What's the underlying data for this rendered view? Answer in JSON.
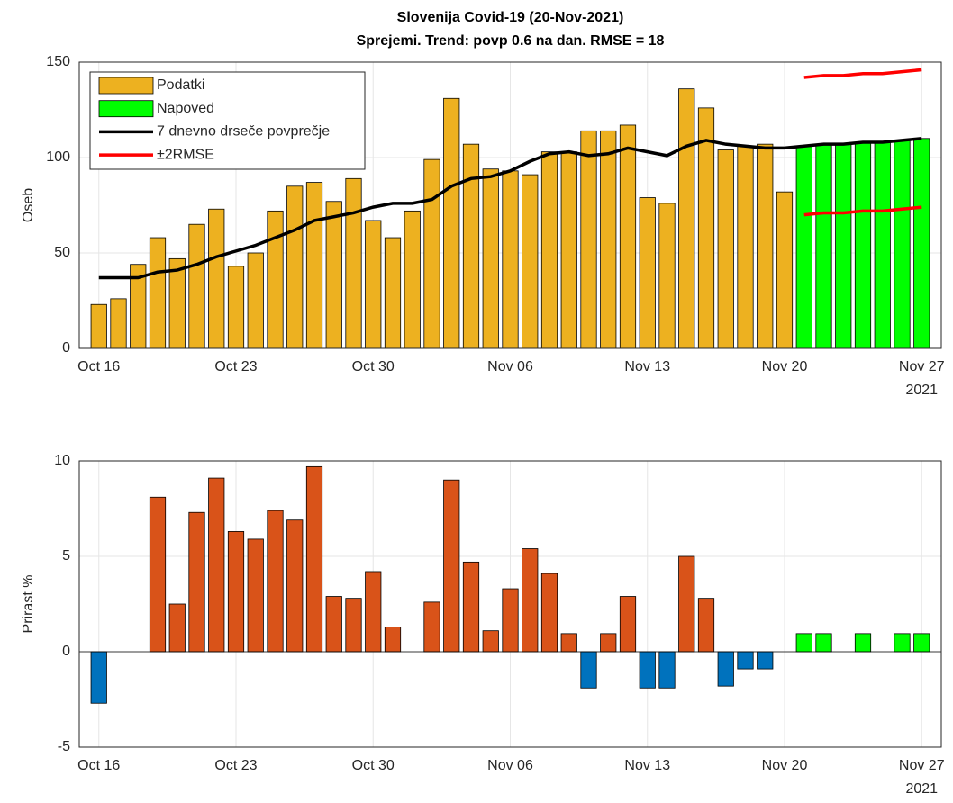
{
  "chart_data": [
    {
      "type": "bar",
      "title": "Slovenija Covid-19 (20-Nov-2021)",
      "subtitle": "Sprejemi. Trend: povp 0.6 na dan. RMSE = 18",
      "ylabel": "Oseb",
      "x": [
        "2021-10-16",
        "2021-10-17",
        "2021-10-18",
        "2021-10-19",
        "2021-10-20",
        "2021-10-21",
        "2021-10-22",
        "2021-10-23",
        "2021-10-24",
        "2021-10-25",
        "2021-10-26",
        "2021-10-27",
        "2021-10-28",
        "2021-10-29",
        "2021-10-30",
        "2021-10-31",
        "2021-11-01",
        "2021-11-02",
        "2021-11-03",
        "2021-11-04",
        "2021-11-05",
        "2021-11-06",
        "2021-11-07",
        "2021-11-08",
        "2021-11-09",
        "2021-11-10",
        "2021-11-11",
        "2021-11-12",
        "2021-11-13",
        "2021-11-14",
        "2021-11-15",
        "2021-11-16",
        "2021-11-17",
        "2021-11-18",
        "2021-11-19",
        "2021-11-20",
        "2021-11-21",
        "2021-11-22",
        "2021-11-23",
        "2021-11-24",
        "2021-11-25",
        "2021-11-26",
        "2021-11-27"
      ],
      "xlim": [
        "2021-10-15",
        "2021-11-28"
      ],
      "xticks": [
        {
          "value": "2021-10-16",
          "label": "Oct 16"
        },
        {
          "value": "2021-10-23",
          "label": "Oct 23"
        },
        {
          "value": "2021-10-30",
          "label": "Oct 30"
        },
        {
          "value": "2021-11-06",
          "label": "Nov 06"
        },
        {
          "value": "2021-11-13",
          "label": "Nov 13"
        },
        {
          "value": "2021-11-20",
          "label": "Nov 20"
        },
        {
          "value": "2021-11-27",
          "label": "Nov 27"
        }
      ],
      "x_year_label": "2021",
      "ylim": [
        0,
        150
      ],
      "yticks": [
        0,
        50,
        100,
        150
      ],
      "grid": true,
      "legend": "top-left",
      "series": [
        {
          "name": "Podatki",
          "type": "bar",
          "color": "#edb120",
          "values": [
            23,
            26,
            44,
            58,
            47,
            65,
            73,
            43,
            50,
            72,
            85,
            87,
            77,
            89,
            67,
            58,
            72,
            99,
            131,
            107,
            94,
            93,
            91,
            103,
            103,
            114,
            114,
            117,
            79,
            76,
            136,
            126,
            104,
            106,
            107,
            82,
            null,
            null,
            null,
            null,
            null,
            null,
            null
          ]
        },
        {
          "name": "Napoved",
          "type": "bar",
          "color": "#00ff00",
          "values": [
            null,
            null,
            null,
            null,
            null,
            null,
            null,
            null,
            null,
            null,
            null,
            null,
            null,
            null,
            null,
            null,
            null,
            null,
            null,
            null,
            null,
            null,
            null,
            null,
            null,
            null,
            null,
            null,
            null,
            null,
            null,
            null,
            null,
            null,
            null,
            null,
            106,
            107,
            107,
            108,
            108,
            109,
            110
          ]
        },
        {
          "name": "7 dnevno drseče povprečje",
          "type": "line",
          "color": "#000000",
          "values": [
            37,
            37,
            37,
            40,
            41,
            44,
            48,
            51,
            54,
            58,
            62,
            67,
            69,
            71,
            74,
            76,
            76,
            78,
            85,
            89,
            90,
            93,
            98,
            102,
            103,
            101,
            102,
            105,
            103,
            101,
            106,
            109,
            107,
            106,
            105,
            105,
            106,
            107,
            107,
            108,
            108,
            109,
            110
          ]
        },
        {
          "name": "±2RMSE",
          "type": "line",
          "color": "#ff0000",
          "values": [
            null,
            null,
            null,
            null,
            null,
            null,
            null,
            null,
            null,
            null,
            null,
            null,
            null,
            null,
            null,
            null,
            null,
            null,
            null,
            null,
            null,
            null,
            null,
            null,
            null,
            null,
            null,
            null,
            null,
            null,
            null,
            null,
            null,
            null,
            null,
            null,
            142,
            143,
            143,
            144,
            144,
            145,
            146
          ]
        },
        {
          "type": "line",
          "color": "#ff0000",
          "values": [
            null,
            null,
            null,
            null,
            null,
            null,
            null,
            null,
            null,
            null,
            null,
            null,
            null,
            null,
            null,
            null,
            null,
            null,
            null,
            null,
            null,
            null,
            null,
            null,
            null,
            null,
            null,
            null,
            null,
            null,
            null,
            null,
            null,
            null,
            null,
            null,
            70,
            71,
            71,
            72,
            72,
            73,
            74
          ]
        }
      ]
    },
    {
      "type": "bar",
      "ylabel": "Prirast %",
      "x": [
        "2021-10-16",
        "2021-10-17",
        "2021-10-18",
        "2021-10-19",
        "2021-10-20",
        "2021-10-21",
        "2021-10-22",
        "2021-10-23",
        "2021-10-24",
        "2021-10-25",
        "2021-10-26",
        "2021-10-27",
        "2021-10-28",
        "2021-10-29",
        "2021-10-30",
        "2021-10-31",
        "2021-11-01",
        "2021-11-02",
        "2021-11-03",
        "2021-11-04",
        "2021-11-05",
        "2021-11-06",
        "2021-11-07",
        "2021-11-08",
        "2021-11-09",
        "2021-11-10",
        "2021-11-11",
        "2021-11-12",
        "2021-11-13",
        "2021-11-14",
        "2021-11-15",
        "2021-11-16",
        "2021-11-17",
        "2021-11-18",
        "2021-11-19",
        "2021-11-20",
        "2021-11-21",
        "2021-11-22",
        "2021-11-23",
        "2021-11-24",
        "2021-11-25",
        "2021-11-26",
        "2021-11-27"
      ],
      "xlim": [
        "2021-10-15",
        "2021-11-28"
      ],
      "xticks": [
        {
          "value": "2021-10-16",
          "label": "Oct 16"
        },
        {
          "value": "2021-10-23",
          "label": "Oct 23"
        },
        {
          "value": "2021-10-30",
          "label": "Oct 30"
        },
        {
          "value": "2021-11-06",
          "label": "Nov 06"
        },
        {
          "value": "2021-11-13",
          "label": "Nov 13"
        },
        {
          "value": "2021-11-20",
          "label": "Nov 20"
        },
        {
          "value": "2021-11-27",
          "label": "Nov 27"
        }
      ],
      "x_year_label": "2021",
      "ylim": [
        -5,
        10
      ],
      "yticks": [
        -5,
        0,
        5,
        10
      ],
      "grid": true,
      "series": [
        {
          "type": "bar",
          "color": "#d95319",
          "values": [
            null,
            null,
            null,
            8.1,
            2.5,
            7.3,
            9.1,
            6.3,
            5.9,
            7.4,
            6.9,
            9.7,
            2.9,
            2.8,
            4.2,
            1.3,
            null,
            2.6,
            9.0,
            4.7,
            1.1,
            3.3,
            5.4,
            4.1,
            0.95,
            null,
            0.95,
            2.9,
            null,
            null,
            5.0,
            2.8,
            null,
            null,
            null,
            null,
            null,
            null,
            null,
            null,
            null,
            null,
            null
          ]
        },
        {
          "type": "bar",
          "color": "#0072bd",
          "values": [
            -2.7,
            null,
            null,
            null,
            null,
            null,
            null,
            null,
            null,
            null,
            null,
            null,
            null,
            null,
            null,
            null,
            null,
            null,
            null,
            null,
            null,
            null,
            null,
            null,
            null,
            -1.9,
            null,
            null,
            -1.9,
            -1.9,
            null,
            null,
            -1.8,
            -0.9,
            -0.9,
            null,
            null,
            null,
            null,
            null,
            null,
            null,
            null
          ]
        },
        {
          "type": "bar",
          "color": "#00ff00",
          "values": [
            null,
            null,
            null,
            null,
            null,
            null,
            null,
            null,
            null,
            null,
            null,
            null,
            null,
            null,
            null,
            null,
            null,
            null,
            null,
            null,
            null,
            null,
            null,
            null,
            null,
            null,
            null,
            null,
            null,
            null,
            null,
            null,
            null,
            null,
            null,
            null,
            0.95,
            0.95,
            null,
            0.95,
            null,
            0.95,
            0.95
          ]
        }
      ]
    }
  ]
}
